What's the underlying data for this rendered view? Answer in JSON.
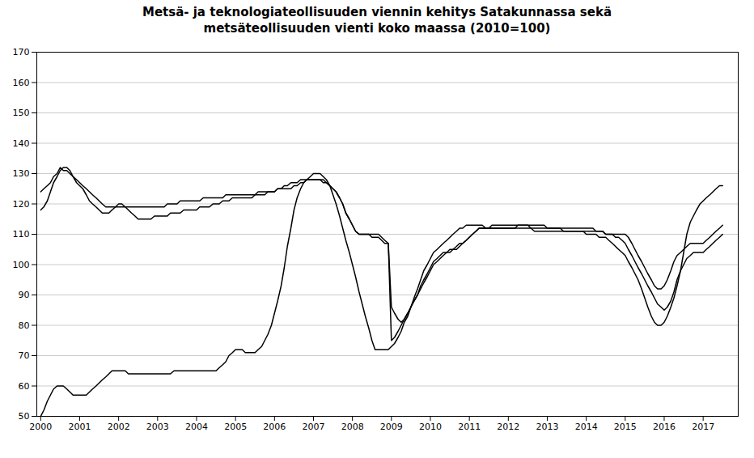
{
  "chart_data": {
    "type": "line",
    "title": "Metsä- ja teknologiateollisuuden viennin kehitys Satakunnassa sekä\nmetsäteollisuuden vienti koko maassa (2010=100)",
    "x": [
      2000.0,
      2000.08,
      2000.17,
      2000.25,
      2000.33,
      2000.42,
      2000.5,
      2000.58,
      2000.67,
      2000.75,
      2000.83,
      2000.92,
      2001.0,
      2001.08,
      2001.17,
      2001.25,
      2001.33,
      2001.42,
      2001.5,
      2001.58,
      2001.67,
      2001.75,
      2001.83,
      2001.92,
      2002.0,
      2002.08,
      2002.17,
      2002.25,
      2002.33,
      2002.42,
      2002.5,
      2002.58,
      2002.67,
      2002.75,
      2002.83,
      2002.92,
      2003.0,
      2003.08,
      2003.17,
      2003.25,
      2003.33,
      2003.42,
      2003.5,
      2003.58,
      2003.67,
      2003.75,
      2003.83,
      2003.92,
      2004.0,
      2004.08,
      2004.17,
      2004.25,
      2004.33,
      2004.42,
      2004.5,
      2004.58,
      2004.67,
      2004.75,
      2004.83,
      2004.92,
      2005.0,
      2005.08,
      2005.17,
      2005.25,
      2005.33,
      2005.42,
      2005.5,
      2005.58,
      2005.67,
      2005.75,
      2005.83,
      2005.92,
      2006.0,
      2006.08,
      2006.17,
      2006.25,
      2006.33,
      2006.42,
      2006.5,
      2006.58,
      2006.67,
      2006.75,
      2006.83,
      2006.92,
      2007.0,
      2007.08,
      2007.17,
      2007.25,
      2007.33,
      2007.42,
      2007.5,
      2007.58,
      2007.67,
      2007.75,
      2007.83,
      2007.92,
      2008.0,
      2008.08,
      2008.17,
      2008.25,
      2008.33,
      2008.42,
      2008.5,
      2008.58,
      2008.67,
      2008.75,
      2008.83,
      2008.92,
      2009.0,
      2009.08,
      2009.17,
      2009.25,
      2009.33,
      2009.42,
      2009.5,
      2009.58,
      2009.67,
      2009.75,
      2009.83,
      2009.92,
      2010.0,
      2010.08,
      2010.17,
      2010.25,
      2010.33,
      2010.42,
      2010.5,
      2010.58,
      2010.67,
      2010.75,
      2010.83,
      2010.92,
      2011.0,
      2011.08,
      2011.17,
      2011.25,
      2011.33,
      2011.42,
      2011.5,
      2011.58,
      2011.67,
      2011.75,
      2011.83,
      2011.92,
      2012.0,
      2012.08,
      2012.17,
      2012.25,
      2012.33,
      2012.42,
      2012.5,
      2012.58,
      2012.67,
      2012.75,
      2012.83,
      2012.92,
      2013.0,
      2013.08,
      2013.17,
      2013.25,
      2013.33,
      2013.42,
      2013.5,
      2013.58,
      2013.67,
      2013.75,
      2013.83,
      2013.92,
      2014.0,
      2014.08,
      2014.17,
      2014.25,
      2014.33,
      2014.42,
      2014.5,
      2014.58,
      2014.67,
      2014.75,
      2014.83,
      2014.92,
      2015.0,
      2015.08,
      2015.17,
      2015.25,
      2015.33,
      2015.42,
      2015.5,
      2015.58,
      2015.67,
      2015.75,
      2015.83,
      2015.92,
      2016.0,
      2016.08,
      2016.17,
      2016.25,
      2016.33,
      2016.42,
      2016.5,
      2016.58,
      2016.67,
      2016.75,
      2016.83,
      2016.92,
      2017.0,
      2017.08,
      2017.17,
      2017.25,
      2017.33,
      2017.42,
      2017.5
    ],
    "series": [
      {
        "values": [
          118,
          119,
          121,
          124,
          127,
          129,
          131,
          132,
          132,
          131,
          129,
          127,
          126,
          125,
          123,
          121,
          120,
          119,
          118,
          117,
          117,
          117,
          118,
          119,
          120,
          120,
          119,
          118,
          117,
          116,
          115,
          115,
          115,
          115,
          115,
          116,
          116,
          116,
          116,
          116,
          117,
          117,
          117,
          117,
          118,
          118,
          118,
          118,
          118,
          119,
          119,
          119,
          119,
          120,
          120,
          120,
          121,
          121,
          121,
          122,
          122,
          122,
          122,
          122,
          122,
          122,
          123,
          123,
          123,
          123,
          124,
          124,
          124,
          125,
          125,
          126,
          126,
          127,
          127,
          127,
          128,
          128,
          128,
          128,
          128,
          128,
          128,
          127,
          127,
          126,
          125,
          124,
          122,
          120,
          117,
          115,
          113,
          111,
          110,
          110,
          110,
          110,
          110,
          110,
          110,
          109,
          108,
          107,
          86,
          84,
          82,
          81,
          82,
          84,
          86,
          88,
          90,
          92,
          94,
          96,
          98,
          100,
          101,
          102,
          103,
          104,
          104,
          105,
          105,
          106,
          107,
          108,
          109,
          110,
          111,
          112,
          112,
          112,
          112,
          112,
          112,
          112,
          112,
          112,
          112,
          112,
          112,
          113,
          113,
          113,
          113,
          113,
          113,
          113,
          113,
          113,
          112,
          112,
          112,
          112,
          112,
          111,
          111,
          111,
          111,
          111,
          111,
          111,
          111,
          111,
          111,
          111,
          111,
          111,
          110,
          110,
          110,
          110,
          110,
          110,
          110,
          109,
          107,
          105,
          103,
          101,
          99,
          97,
          95,
          93,
          92,
          92,
          93,
          95,
          98,
          101,
          103,
          104,
          105,
          106,
          107,
          107,
          107,
          107,
          107,
          108,
          109,
          110,
          111,
          112,
          113
        ]
      },
      {
        "values": [
          124,
          125,
          126,
          127,
          129,
          130,
          132,
          131,
          131,
          130,
          129,
          128,
          127,
          126,
          125,
          124,
          123,
          122,
          121,
          120,
          119,
          119,
          119,
          119,
          119,
          119,
          119,
          119,
          119,
          119,
          119,
          119,
          119,
          119,
          119,
          119,
          119,
          119,
          119,
          120,
          120,
          120,
          120,
          121,
          121,
          121,
          121,
          121,
          121,
          121,
          122,
          122,
          122,
          122,
          122,
          122,
          122,
          123,
          123,
          123,
          123,
          123,
          123,
          123,
          123,
          123,
          123,
          124,
          124,
          124,
          124,
          124,
          124,
          125,
          125,
          125,
          125,
          125,
          126,
          126,
          127,
          127,
          128,
          128,
          128,
          128,
          128,
          128,
          127,
          126,
          125,
          124,
          122,
          120,
          117,
          115,
          113,
          111,
          110,
          110,
          110,
          110,
          109,
          109,
          109,
          108,
          107,
          107,
          75,
          76,
          78,
          80,
          82,
          84,
          86,
          88,
          90,
          93,
          95,
          97,
          99,
          101,
          102,
          103,
          104,
          104,
          105,
          105,
          106,
          107,
          107,
          108,
          109,
          110,
          111,
          112,
          112,
          112,
          112,
          113,
          113,
          113,
          113,
          113,
          113,
          113,
          113,
          113,
          113,
          113,
          113,
          112,
          112,
          112,
          112,
          112,
          112,
          112,
          112,
          112,
          112,
          112,
          112,
          112,
          112,
          112,
          112,
          112,
          112,
          112,
          112,
          111,
          111,
          111,
          110,
          110,
          110,
          109,
          109,
          108,
          107,
          105,
          103,
          101,
          99,
          97,
          95,
          93,
          91,
          89,
          87,
          86,
          85,
          86,
          88,
          91,
          95,
          98,
          100,
          102,
          103,
          104,
          104,
          104,
          104,
          105,
          106,
          107,
          108,
          109,
          110
        ]
      },
      {
        "values": [
          50,
          52,
          55,
          57,
          59,
          60,
          60,
          60,
          59,
          58,
          57,
          57,
          57,
          57,
          57,
          58,
          59,
          60,
          61,
          62,
          63,
          64,
          65,
          65,
          65,
          65,
          65,
          64,
          64,
          64,
          64,
          64,
          64,
          64,
          64,
          64,
          64,
          64,
          64,
          64,
          64,
          65,
          65,
          65,
          65,
          65,
          65,
          65,
          65,
          65,
          65,
          65,
          65,
          65,
          65,
          66,
          67,
          68,
          70,
          71,
          72,
          72,
          72,
          71,
          71,
          71,
          71,
          72,
          73,
          75,
          77,
          80,
          84,
          88,
          93,
          99,
          106,
          112,
          118,
          122,
          125,
          127,
          128,
          129,
          130,
          130,
          130,
          129,
          128,
          126,
          123,
          120,
          116,
          112,
          108,
          104,
          100,
          96,
          91,
          87,
          83,
          79,
          75,
          72,
          72,
          72,
          72,
          72,
          73,
          74,
          76,
          78,
          81,
          83,
          86,
          89,
          92,
          95,
          98,
          100,
          102,
          104,
          105,
          106,
          107,
          108,
          109,
          110,
          111,
          112,
          112,
          113,
          113,
          113,
          113,
          113,
          113,
          112,
          112,
          112,
          112,
          112,
          112,
          112,
          112,
          112,
          112,
          112,
          112,
          112,
          112,
          112,
          111,
          111,
          111,
          111,
          111,
          111,
          111,
          111,
          111,
          111,
          111,
          111,
          111,
          111,
          111,
          111,
          110,
          110,
          110,
          110,
          109,
          109,
          109,
          108,
          107,
          106,
          105,
          104,
          103,
          101,
          99,
          97,
          95,
          92,
          89,
          86,
          83,
          81,
          80,
          80,
          81,
          83,
          86,
          89,
          93,
          98,
          104,
          110,
          114,
          116,
          118,
          120,
          121,
          122,
          123,
          124,
          125,
          126,
          126
        ]
      }
    ],
    "xlim": [
      1999.9,
      2017.9
    ],
    "xticks": [
      2000,
      2001,
      2002,
      2003,
      2004,
      2005,
      2006,
      2007,
      2008,
      2009,
      2010,
      2011,
      2012,
      2013,
      2014,
      2015,
      2016,
      2017
    ],
    "ylim": [
      50,
      170
    ],
    "yticks": [
      50,
      60,
      70,
      80,
      90,
      100,
      110,
      120,
      130,
      140,
      150,
      160,
      170
    ],
    "grid": true
  }
}
